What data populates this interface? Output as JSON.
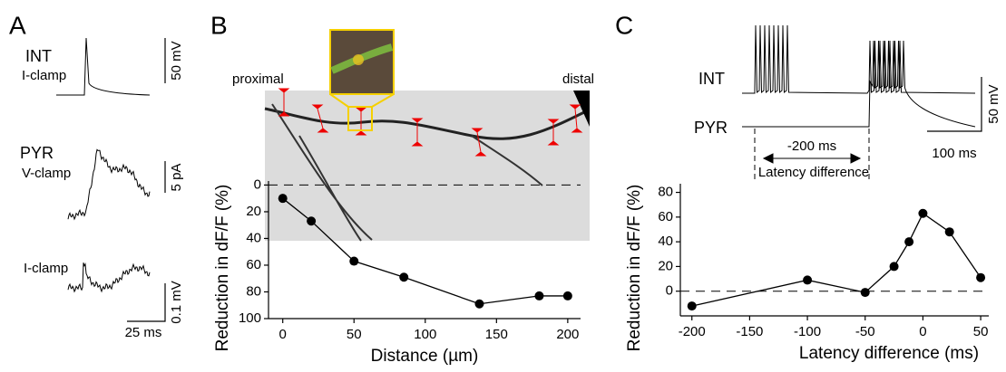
{
  "panels": {
    "a": "A",
    "b": "B",
    "c": "C"
  },
  "panel_a": {
    "int": "INT",
    "int_mode": "I-clamp",
    "int_scale": "50 mV",
    "pyr": "PYR",
    "pyr_mode": "V-clamp",
    "pyr_scale": "5 pA",
    "pyr_mode2": "I-clamp",
    "pyr_scale2": "0.1 mV",
    "time_scale": "25 ms"
  },
  "panel_b": {
    "proximal": "proximal",
    "distal": "distal"
  },
  "panel_c": {
    "int": "INT",
    "pyr": "PYR",
    "latency": "-200 ms",
    "latency_label": "Latency difference",
    "v_scale": "50 mV",
    "time_scale": "100 ms"
  },
  "chart_data": [
    {
      "type": "line",
      "xlabel": "Distance (µm)",
      "ylabel": "Reduction in dF/F (%)",
      "x": [
        0,
        20,
        50,
        85,
        138,
        180,
        200
      ],
      "values": [
        10,
        27,
        57,
        69,
        89,
        83,
        83
      ],
      "xlim": [
        -10,
        209
      ],
      "ylim": [
        -3,
        100
      ],
      "y_inverted": true,
      "xticks": [
        0,
        50,
        100,
        150,
        200
      ],
      "yticks": [
        0,
        20,
        40,
        60,
        80,
        100
      ],
      "zero_line": true,
      "color": "#000000"
    },
    {
      "type": "line",
      "xlabel": "Latency difference (ms)",
      "ylabel": "Reduction in dF/F (%)",
      "x": [
        -200,
        -100,
        -50,
        -25,
        -12,
        0,
        23,
        50
      ],
      "values": [
        -12,
        9,
        -1,
        20,
        40,
        63,
        48,
        11
      ],
      "xlim": [
        -210,
        57
      ],
      "ylim": [
        -20,
        87
      ],
      "y_inverted": false,
      "xticks": [
        -200,
        -150,
        -100,
        -50,
        0,
        50
      ],
      "yticks": [
        0,
        20,
        40,
        60,
        80
      ],
      "zero_line": true,
      "color": "#000000"
    }
  ]
}
